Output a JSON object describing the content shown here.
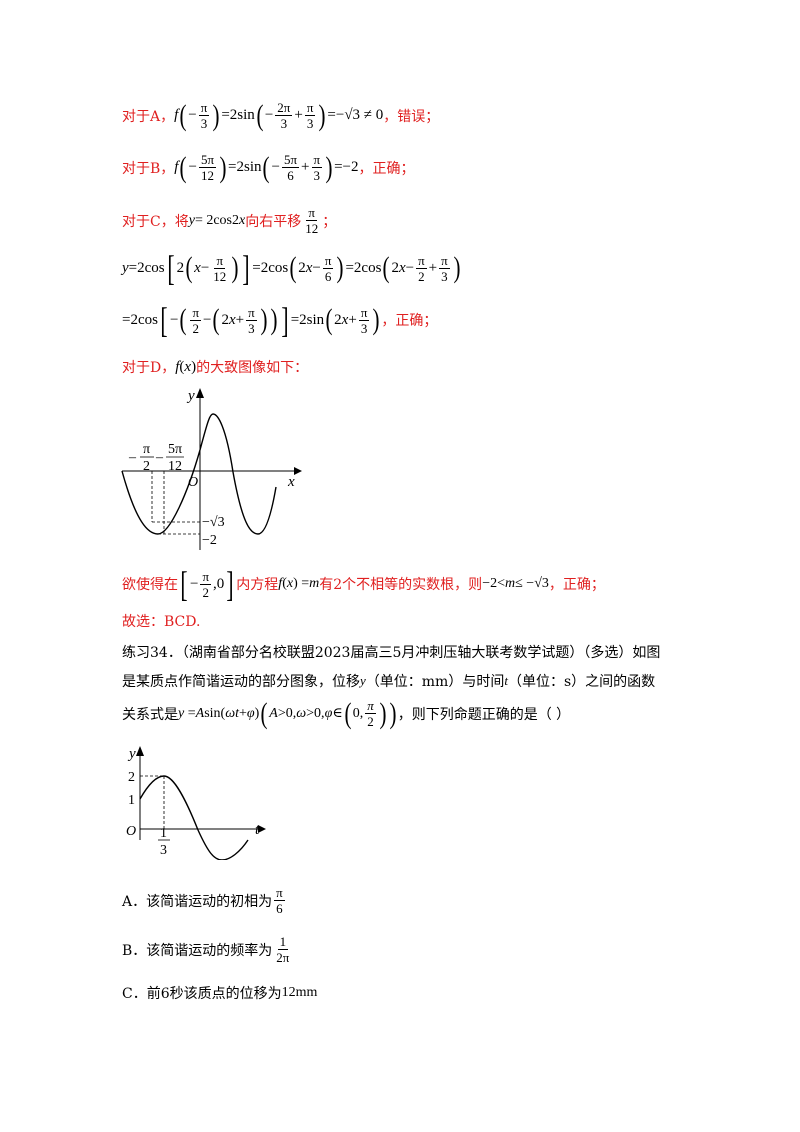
{
  "solution": {
    "a_prefix": "对于A，",
    "a_suffix": "，错误；",
    "b_prefix": "对于B，",
    "b_suffix": "，正确；",
    "c_prefix": "对于C，将",
    "c_mid": "向右平移",
    "c_semicolon": "；",
    "c_suffix": "，正确；",
    "d_prefix": "对于D，",
    "d_suffix": "的大致图像如下：",
    "conclusion_prefix": "欲使得在",
    "conclusion_mid1": "内方程",
    "conclusion_mid2": "有2个不相等的实数根，则",
    "conclusion_suffix": "，正确；",
    "answer": "故选：BCD."
  },
  "graph1": {
    "y_label": "y",
    "x_label": "x",
    "origin": "O",
    "tick_left_num": "π",
    "tick_left_den": "2",
    "tick_right_num": "5π",
    "tick_right_den": "12",
    "level_sqrt3": "−√3",
    "level_minus2": "−2"
  },
  "exercise": {
    "line1": "练习34．（湖南省部分名校联盟2023届高三5月冲刺压轴大联考数学试题）（多选）如图",
    "line2_a": "是某质点作简谐运动的部分图象，位移",
    "line2_b": "（单位：mm）与时间",
    "line2_c": "（单位：s）之间的函数",
    "line3_a": "关系式是",
    "line3_b": "，则下列命题正确的是（    ）"
  },
  "graph2": {
    "y_label": "y",
    "t_label": "t",
    "origin": "O",
    "tick_2": "2",
    "tick_1": "1",
    "tick_third_num": "1",
    "tick_third_den": "3"
  },
  "options": {
    "a": "A．该简谐运动的初相为",
    "b": "B．该简谐运动的频率为",
    "c_a": "C．前6秒该质点的位移为",
    "c_b": "12mm"
  }
}
